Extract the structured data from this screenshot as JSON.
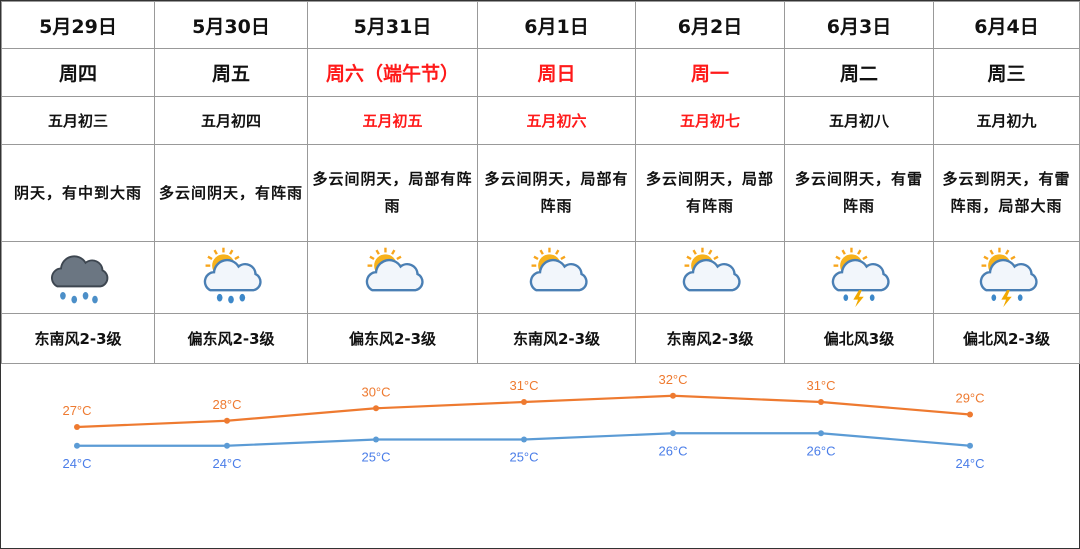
{
  "days": [
    {
      "date": "5月29日",
      "weekday": "周四",
      "lunar": "五月初三",
      "desc": "阴天，有中到大雨",
      "icon": "cloud-heavy-rain-icon",
      "wind": "东南风2-3级",
      "holiday": false,
      "high": 27,
      "low": 24,
      "high_label": "27°C",
      "low_label": "24°C"
    },
    {
      "date": "5月30日",
      "weekday": "周五",
      "lunar": "五月初四",
      "desc": "多云间阴天，有阵雨",
      "icon": "sun-cloud-rain-icon",
      "wind": "偏东风2-3级",
      "holiday": false,
      "high": 28,
      "low": 24,
      "high_label": "28°C",
      "low_label": "24°C"
    },
    {
      "date": "5月31日",
      "weekday": "周六（端午节）",
      "lunar": "五月初五",
      "desc": "多云间阴天，局部有阵雨",
      "icon": "sun-cloud-icon",
      "wind": "偏东风2-3级",
      "holiday": true,
      "high": 30,
      "low": 25,
      "high_label": "30°C",
      "low_label": "25°C"
    },
    {
      "date": "6月1日",
      "weekday": "周日",
      "lunar": "五月初六",
      "desc": "多云间阴天，局部有阵雨",
      "icon": "sun-cloud-icon",
      "wind": "东南风2-3级",
      "holiday": true,
      "high": 31,
      "low": 25,
      "high_label": "31°C",
      "low_label": "25°C"
    },
    {
      "date": "6月2日",
      "weekday": "周一",
      "lunar": "五月初七",
      "desc": "多云间阴天，局部有阵雨",
      "icon": "sun-cloud-icon",
      "wind": "东南风2-3级",
      "holiday": true,
      "high": 32,
      "low": 26,
      "high_label": "32°C",
      "low_label": "26°C"
    },
    {
      "date": "6月3日",
      "weekday": "周二",
      "lunar": "五月初八",
      "desc": "多云间阴天，有雷阵雨",
      "icon": "sun-cloud-thunder-icon",
      "wind": "偏北风3级",
      "holiday": false,
      "high": 31,
      "low": 26,
      "high_label": "31°C",
      "low_label": "26°C"
    },
    {
      "date": "6月4日",
      "weekday": "周三",
      "lunar": "五月初九",
      "desc": "多云到阴天，有雷阵雨，局部大雨",
      "icon": "sun-cloud-thunder-icon",
      "wind": "偏北风2-3级",
      "holiday": false,
      "high": 29,
      "low": 24,
      "high_label": "29°C",
      "low_label": "24°C"
    }
  ],
  "colors": {
    "holiday": "#ff1a1a",
    "high_line": "#ee7a30",
    "low_line": "#5b9bd5",
    "low_text": "#4a7de8"
  }
}
